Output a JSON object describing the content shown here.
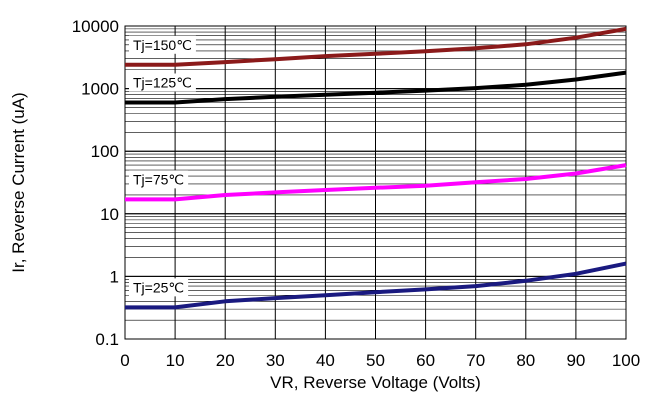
{
  "chart_data": {
    "type": "line",
    "title": "",
    "xlabel": "VR, Reverse Voltage (Volts)",
    "ylabel": "Ir, Reverse Current (uA)",
    "xlim": [
      0,
      100
    ],
    "ylim": [
      0.1,
      10000
    ],
    "y_scale": "log",
    "grid": true,
    "x_ticks": [
      0,
      10,
      20,
      30,
      40,
      50,
      60,
      70,
      80,
      90,
      100
    ],
    "y_ticks": [
      {
        "value": 0.1,
        "label": "0.1"
      },
      {
        "value": 1,
        "label": "1"
      },
      {
        "value": 10,
        "label": "10"
      },
      {
        "value": 100,
        "label": "100"
      },
      {
        "value": 1000,
        "label": "1000"
      },
      {
        "value": 10000,
        "label": "10000"
      }
    ],
    "series": [
      {
        "name": "Tj=150℃",
        "color": "#8b1a1a",
        "x": [
          0,
          10,
          20,
          30,
          40,
          50,
          60,
          70,
          80,
          90,
          100
        ],
        "y": [
          2400,
          2400,
          2650,
          2950,
          3300,
          3600,
          3950,
          4400,
          5100,
          6500,
          9000
        ]
      },
      {
        "name": "Tj=125℃",
        "color": "#000000",
        "x": [
          0,
          10,
          20,
          30,
          40,
          50,
          60,
          70,
          80,
          90,
          100
        ],
        "y": [
          600,
          600,
          680,
          740,
          800,
          860,
          930,
          1020,
          1150,
          1400,
          1800
        ]
      },
      {
        "name": "Tj=75℃",
        "color": "#ff00ff",
        "x": [
          0,
          10,
          20,
          30,
          40,
          50,
          60,
          70,
          80,
          90,
          100
        ],
        "y": [
          17,
          17,
          20,
          22,
          24,
          26,
          28,
          32,
          36,
          44,
          60
        ]
      },
      {
        "name": "Tj=25℃",
        "color": "#1a1a80",
        "x": [
          0,
          10,
          20,
          30,
          40,
          50,
          60,
          70,
          80,
          90,
          100
        ],
        "y": [
          0.32,
          0.32,
          0.4,
          0.45,
          0.5,
          0.56,
          0.62,
          0.7,
          0.85,
          1.1,
          1.6
        ]
      }
    ]
  }
}
